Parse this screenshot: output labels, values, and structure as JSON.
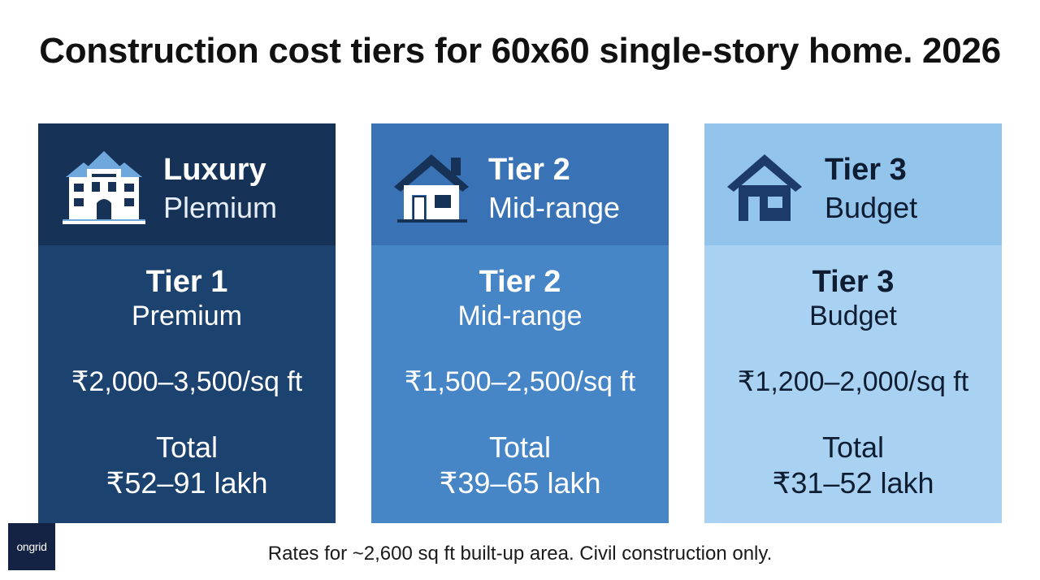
{
  "title": "Construction cost tiers for 60x60 single-story home. 2026",
  "cards": [
    {
      "icon": "mansion-icon",
      "head_title": "Luxury",
      "head_sub": "Plemium",
      "tier_name": "Tier 1",
      "tier_sub": "Premium",
      "rate": "₹2,000–3,500/sq ft",
      "total_label": "Total",
      "total_value": "₹52–91 lakh",
      "colors": {
        "head": "#163257",
        "body": "#1c4270",
        "text": "#ffffff"
      }
    },
    {
      "icon": "house-icon",
      "head_title": "Tier 2",
      "head_sub": "Mid-range",
      "tier_name": "Tier 2",
      "tier_sub": "Mid-range",
      "rate": "₹1,500–2,500/sq ft",
      "total_label": "Total",
      "total_value": "₹39–65 lakh",
      "colors": {
        "head": "#3a73b5",
        "body": "#4786c6",
        "text": "#ffffff"
      }
    },
    {
      "icon": "small-house-icon",
      "head_title": "Tier 3",
      "head_sub": "Budget",
      "tier_name": "Tier 3",
      "tier_sub": "Budget",
      "rate": "₹1,200–2,000/sq ft",
      "total_label": "Total",
      "total_value": "₹31–52 lakh",
      "colors": {
        "head": "#93c4ec",
        "body": "#a9d2f2",
        "text": "#0f1d33"
      }
    }
  ],
  "footnote": "Rates for ~2,600 sq ft built-up area. Civil construction only.",
  "logo_text": "ongrid"
}
